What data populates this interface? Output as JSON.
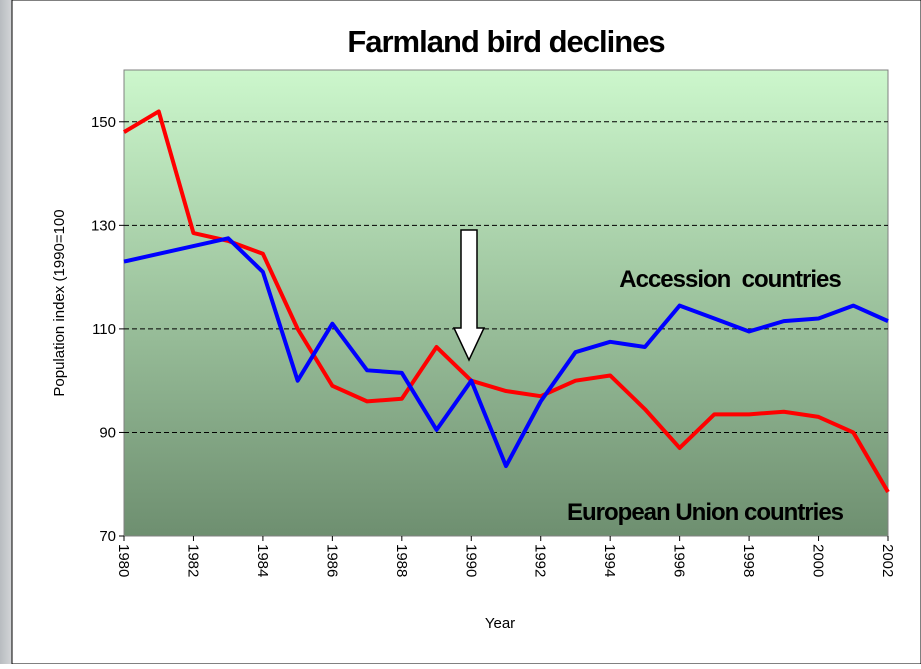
{
  "chart_data": {
    "type": "line",
    "title": "Farmland bird declines",
    "x_label": "Year",
    "y_label": "Population index (1990=100",
    "x": [
      1980,
      1981,
      1982,
      1983,
      1984,
      1985,
      1986,
      1987,
      1988,
      1989,
      1990,
      1991,
      1992,
      1993,
      1994,
      1995,
      1996,
      1997,
      1998,
      1999,
      2000,
      2001,
      2002
    ],
    "series": [
      {
        "name": "European Union countries",
        "color": "#ff0000",
        "values": [
          148,
          152,
          128.5,
          127,
          124.5,
          110,
          99,
          96,
          96.5,
          106.5,
          100,
          98,
          97,
          100,
          101,
          94.5,
          87,
          93.5,
          93.5,
          94,
          93,
          90,
          78.5
        ]
      },
      {
        "name": "Accession  countries",
        "color": "#0000ff",
        "values": [
          123,
          124.5,
          126,
          127.5,
          121,
          100,
          111,
          102,
          101.5,
          90.5,
          100,
          83.5,
          96,
          105.5,
          107.5,
          106.5,
          114.5,
          112,
          109.5,
          111.5,
          112,
          114.5,
          111.5
        ]
      }
    ],
    "xlim": [
      1980,
      2002
    ],
    "xticks": [
      1980,
      1982,
      1984,
      1986,
      1988,
      1990,
      1992,
      1994,
      1996,
      1998,
      2000,
      2002
    ],
    "ylim": [
      70,
      160
    ],
    "yticks": [
      70,
      90,
      110,
      130,
      150
    ],
    "grid": true
  }
}
